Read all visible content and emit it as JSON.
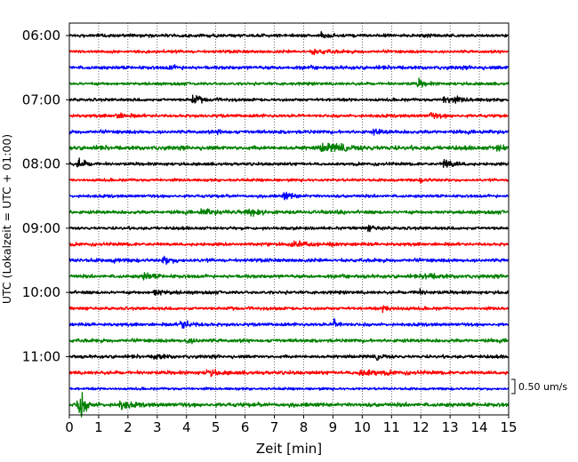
{
  "chart_data": {
    "type": "line",
    "xlabel": "Zeit  [min]",
    "ylabel": "UTC (Lokalzeit = UTC + 01:00)",
    "xlim": [
      0,
      15
    ],
    "x_ticks": [
      "0",
      "1",
      "2",
      "3",
      "4",
      "5",
      "6",
      "7",
      "8",
      "9",
      "10",
      "11",
      "12",
      "13",
      "14",
      "15"
    ],
    "y_ticks": [
      "06:00",
      "07:00",
      "08:00",
      "09:00",
      "10:00",
      "11:00"
    ],
    "grid": "vertical dotted at each minute",
    "trace_interval_minutes": 15,
    "trace_start": "06:00",
    "trace_count": 24,
    "trace_colors": [
      "#000000",
      "#ff0000",
      "#0000ff",
      "#008000"
    ],
    "scale_bar_label": "0.50 um/s",
    "series": [
      {
        "start": "06:00",
        "color": "#000000",
        "noise": 0.32,
        "events": [
          {
            "t": 8.6,
            "amp": 0.6,
            "dur": 0.18
          }
        ]
      },
      {
        "start": "06:15",
        "color": "#ff0000",
        "noise": 0.3,
        "events": [
          {
            "t": 8.3,
            "amp": 0.5,
            "dur": 0.4
          }
        ]
      },
      {
        "start": "06:30",
        "color": "#0000ff",
        "noise": 0.35,
        "events": [
          {
            "t": 3.4,
            "amp": 0.4,
            "dur": 0.2
          }
        ]
      },
      {
        "start": "06:45",
        "color": "#008000",
        "noise": 0.3,
        "events": [
          {
            "t": 11.9,
            "amp": 0.75,
            "dur": 0.2
          }
        ]
      },
      {
        "start": "07:00",
        "color": "#000000",
        "noise": 0.3,
        "events": [
          {
            "t": 4.2,
            "amp": 0.9,
            "dur": 0.25
          },
          {
            "t": 12.8,
            "amp": 0.85,
            "dur": 0.45
          }
        ]
      },
      {
        "start": "07:15",
        "color": "#ff0000",
        "noise": 0.32,
        "events": [
          {
            "t": 1.6,
            "amp": 0.45,
            "dur": 0.3
          },
          {
            "t": 12.3,
            "amp": 0.5,
            "dur": 0.3
          }
        ]
      },
      {
        "start": "07:30",
        "color": "#0000ff",
        "noise": 0.35,
        "events": [
          {
            "t": 5.1,
            "amp": 0.4,
            "dur": 0.2
          },
          {
            "t": 10.4,
            "amp": 0.45,
            "dur": 0.25
          }
        ]
      },
      {
        "start": "07:45",
        "color": "#008000",
        "noise": 0.4,
        "events": [
          {
            "t": 8.6,
            "amp": 0.75,
            "dur": 0.9
          },
          {
            "t": 14.6,
            "amp": 0.55,
            "dur": 0.3
          }
        ]
      },
      {
        "start": "08:00",
        "color": "#000000",
        "noise": 0.3,
        "events": [
          {
            "t": 0.3,
            "amp": 1.05,
            "dur": 0.22
          },
          {
            "t": 12.8,
            "amp": 1.1,
            "dur": 0.28
          }
        ]
      },
      {
        "start": "08:15",
        "color": "#ff0000",
        "noise": 0.28,
        "events": [
          {
            "t": 12.0,
            "amp": 0.3,
            "dur": 0.3
          }
        ]
      },
      {
        "start": "08:30",
        "color": "#0000ff",
        "noise": 0.3,
        "events": [
          {
            "t": 7.3,
            "amp": 0.75,
            "dur": 0.3
          }
        ]
      },
      {
        "start": "08:45",
        "color": "#008000",
        "noise": 0.35,
        "events": [
          {
            "t": 6.0,
            "amp": 0.85,
            "dur": 0.25
          },
          {
            "t": 4.5,
            "amp": 0.5,
            "dur": 0.4
          }
        ]
      },
      {
        "start": "09:00",
        "color": "#000000",
        "noise": 0.3,
        "events": [
          {
            "t": 10.2,
            "amp": 0.4,
            "dur": 0.3
          }
        ]
      },
      {
        "start": "09:15",
        "color": "#ff0000",
        "noise": 0.32,
        "events": [
          {
            "t": 7.6,
            "amp": 0.55,
            "dur": 0.7
          }
        ]
      },
      {
        "start": "09:30",
        "color": "#0000ff",
        "noise": 0.35,
        "events": [
          {
            "t": 3.2,
            "amp": 0.75,
            "dur": 0.25
          },
          {
            "t": 1.5,
            "amp": 0.4,
            "dur": 0.2
          }
        ]
      },
      {
        "start": "09:45",
        "color": "#008000",
        "noise": 0.35,
        "events": [
          {
            "t": 2.5,
            "amp": 0.75,
            "dur": 0.3
          },
          {
            "t": 12.1,
            "amp": 0.55,
            "dur": 0.4
          }
        ]
      },
      {
        "start": "10:00",
        "color": "#000000",
        "noise": 0.32,
        "events": [
          {
            "t": 2.9,
            "amp": 0.65,
            "dur": 0.35
          },
          {
            "t": 11.8,
            "amp": 0.55,
            "dur": 0.25
          }
        ]
      },
      {
        "start": "10:15",
        "color": "#ff0000",
        "noise": 0.3,
        "events": [
          {
            "t": 10.7,
            "amp": 0.45,
            "dur": 0.4
          }
        ]
      },
      {
        "start": "10:30",
        "color": "#0000ff",
        "noise": 0.32,
        "events": [
          {
            "t": 3.8,
            "amp": 1.0,
            "dur": 0.3
          },
          {
            "t": 9.05,
            "amp": 1.1,
            "dur": 0.15
          }
        ]
      },
      {
        "start": "10:45",
        "color": "#008000",
        "noise": 0.35,
        "events": [
          {
            "t": 4.0,
            "amp": 0.5,
            "dur": 0.3
          }
        ]
      },
      {
        "start": "11:00",
        "color": "#000000",
        "noise": 0.32,
        "events": [
          {
            "t": 2.9,
            "amp": 0.65,
            "dur": 0.25
          },
          {
            "t": 10.5,
            "amp": 0.5,
            "dur": 0.25
          }
        ]
      },
      {
        "start": "11:15",
        "color": "#ff0000",
        "noise": 0.35,
        "events": [
          {
            "t": 4.7,
            "amp": 0.65,
            "dur": 0.3
          },
          {
            "t": 9.9,
            "amp": 0.6,
            "dur": 0.6
          }
        ]
      },
      {
        "start": "11:30",
        "color": "#0000ff",
        "noise": 0.25,
        "events": []
      },
      {
        "start": "11:45",
        "color": "#008000",
        "noise": 0.4,
        "events": [
          {
            "t": 0.3,
            "amp": 3.6,
            "dur": 0.18
          },
          {
            "t": 1.75,
            "amp": 0.9,
            "dur": 0.25
          }
        ]
      }
    ]
  }
}
